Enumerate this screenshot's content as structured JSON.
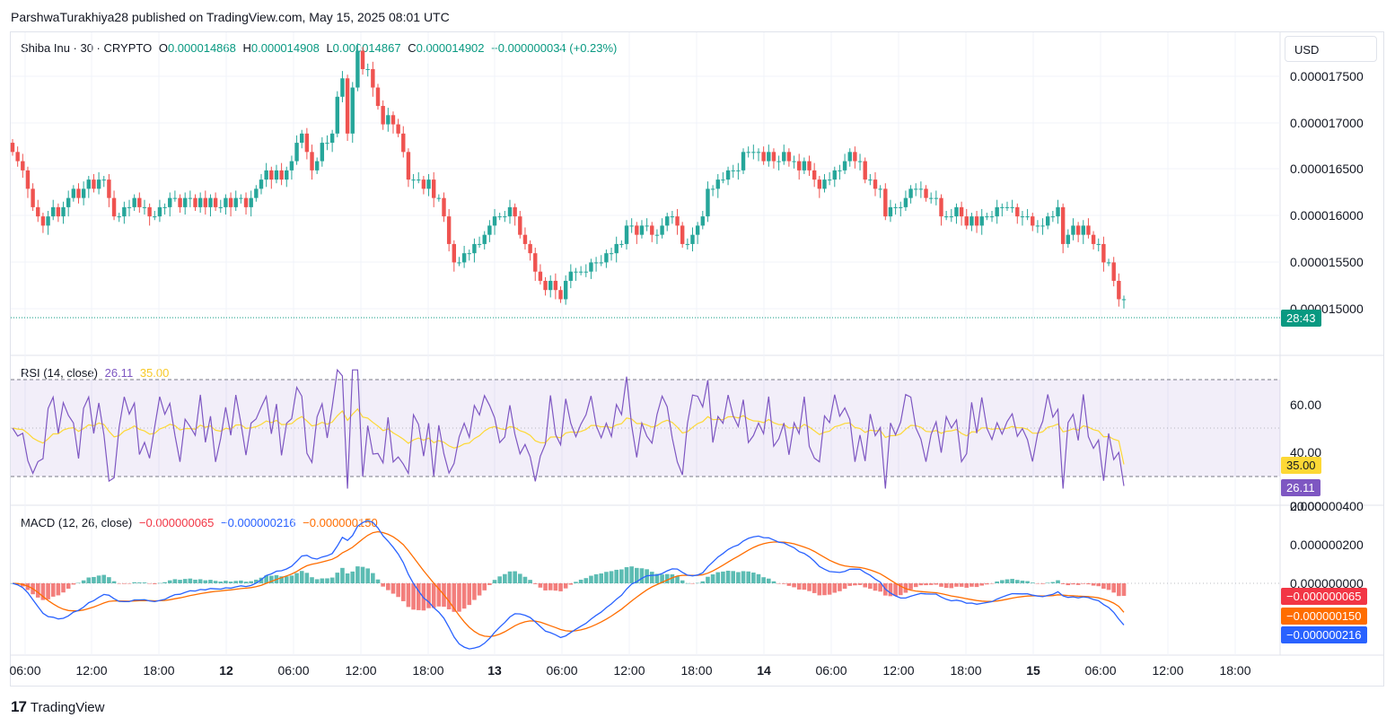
{
  "attribution": "ParshwaTurakhiya28 published on TradingView.com, May 15, 2025 08:01 UTC",
  "currency_button": "USD",
  "legend": {
    "symbol": "Shiba Inu · 30 · CRYPTO",
    "o_label": "O",
    "o_value": "0.000014868",
    "h_label": "H",
    "h_value": "0.000014908",
    "l_label": "L",
    "l_value": "0.000014867",
    "c_label": "C",
    "c_value": "0.000014902",
    "change": "+0.000000034 (+0.23%)"
  },
  "rsi_legend": {
    "name": "RSI (14, close)",
    "value": "26.11",
    "ma": "35.00"
  },
  "macd_legend": {
    "name": "MACD (12, 26, close)",
    "hist": "−0.000000065",
    "macd": "−0.000000216",
    "signal": "−0.000000150"
  },
  "price_axis_labels": [
    "0.000017500",
    "0.000017000",
    "0.000016500",
    "0.000016000",
    "0.000015500",
    "0.000015000"
  ],
  "rsi_axis_labels": [
    "60.00",
    "40.00",
    "20.00"
  ],
  "macd_axis_labels": [
    "0.000000400",
    "0.000000200",
    "0.000000000"
  ],
  "time_labels": [
    "06:00",
    "12:00",
    "18:00",
    "12",
    "06:00",
    "12:00",
    "18:00",
    "13",
    "06:00",
    "12:00",
    "18:00",
    "14",
    "06:00",
    "12:00",
    "18:00",
    "15",
    "06:00",
    "12:00",
    "18:00"
  ],
  "countdown": "28:43",
  "rsi_tags": {
    "ma": "35.00",
    "rsi": "26.11"
  },
  "macd_tags": {
    "hist": "−0.000000065",
    "signal": "−0.000000150",
    "macd": "−0.000000216"
  },
  "footer_brand": "TradingView",
  "colors": {
    "up": "#26a69a",
    "down": "#ef5350",
    "rsi": "#7e57c2",
    "rsi_ma": "#fdd835",
    "macd": "#2962ff",
    "signal": "#ff6d00",
    "hist_up": "#26a69a",
    "hist_down": "#ef5350"
  },
  "chart_data": {
    "type": "candlestick",
    "price_ylim": [
      1.43e-05,
      1.78e-05
    ],
    "candles_close": [
      1.65e-05,
      1.64e-05,
      1.63e-05,
      1.61e-05,
      1.59e-05,
      1.58e-05,
      1.57e-05,
      1.58e-05,
      1.59e-05,
      1.58e-05,
      1.59e-05,
      1.6e-05,
      1.61e-05,
      1.6e-05,
      1.61e-05,
      1.62e-05,
      1.61e-05,
      1.62e-05,
      1.62e-05,
      1.6e-05,
      1.58e-05,
      1.58e-05,
      1.59e-05,
      1.59e-05,
      1.6e-05,
      1.59e-05,
      1.59e-05,
      1.58e-05,
      1.58e-05,
      1.59e-05,
      1.59e-05,
      1.6e-05,
      1.6e-05,
      1.59e-05,
      1.6e-05,
      1.6e-05,
      1.59e-05,
      1.6e-05,
      1.59e-05,
      1.6e-05,
      1.59e-05,
      1.59e-05,
      1.6e-05,
      1.59e-05,
      1.6e-05,
      1.6e-05,
      1.59e-05,
      1.6e-05,
      1.61e-05,
      1.62e-05,
      1.63e-05,
      1.62e-05,
      1.63e-05,
      1.62e-05,
      1.63e-05,
      1.64e-05,
      1.66e-05,
      1.67e-05,
      1.65e-05,
      1.63e-05,
      1.64e-05,
      1.66e-05,
      1.66e-05,
      1.67e-05,
      1.71e-05,
      1.73e-05,
      1.67e-05,
      1.72e-05,
      1.76e-05,
      1.74e-05,
      1.74e-05,
      1.72e-05,
      1.7e-05,
      1.68e-05,
      1.69e-05,
      1.68e-05,
      1.67e-05,
      1.65e-05,
      1.62e-05,
      1.62e-05,
      1.62e-05,
      1.61e-05,
      1.62e-05,
      1.6e-05,
      1.6e-05,
      1.58e-05,
      1.55e-05,
      1.53e-05,
      1.53e-05,
      1.54e-05,
      1.54e-05,
      1.55e-05,
      1.55e-05,
      1.56e-05,
      1.57e-05,
      1.58e-05,
      1.58e-05,
      1.58e-05,
      1.59e-05,
      1.58e-05,
      1.56e-05,
      1.55e-05,
      1.54e-05,
      1.52e-05,
      1.51e-05,
      1.5e-05,
      1.51e-05,
      1.5e-05,
      1.49e-05,
      1.51e-05,
      1.52e-05,
      1.52e-05,
      1.52e-05,
      1.52e-05,
      1.53e-05,
      1.53e-05,
      1.53e-05,
      1.54e-05,
      1.54e-05,
      1.55e-05,
      1.55e-05,
      1.57e-05,
      1.57e-05,
      1.56e-05,
      1.57e-05,
      1.57e-05,
      1.56e-05,
      1.56e-05,
      1.57e-05,
      1.58e-05,
      1.58e-05,
      1.57e-05,
      1.55e-05,
      1.55e-05,
      1.56e-05,
      1.57e-05,
      1.58e-05,
      1.61e-05,
      1.61e-05,
      1.62e-05,
      1.62e-05,
      1.63e-05,
      1.63e-05,
      1.63e-05,
      1.65e-05,
      1.65e-05,
      1.65e-05,
      1.65e-05,
      1.64e-05,
      1.65e-05,
      1.64e-05,
      1.64e-05,
      1.65e-05,
      1.64e-05,
      1.64e-05,
      1.63e-05,
      1.64e-05,
      1.63e-05,
      1.62e-05,
      1.61e-05,
      1.62e-05,
      1.62e-05,
      1.63e-05,
      1.63e-05,
      1.64e-05,
      1.65e-05,
      1.64e-05,
      1.64e-05,
      1.62e-05,
      1.62e-05,
      1.61e-05,
      1.61e-05,
      1.58e-05,
      1.59e-05,
      1.59e-05,
      1.59e-05,
      1.6e-05,
      1.61e-05,
      1.61e-05,
      1.61e-05,
      1.6e-05,
      1.6e-05,
      1.6e-05,
      1.58e-05,
      1.58e-05,
      1.58e-05,
      1.59e-05,
      1.58e-05,
      1.57e-05,
      1.58e-05,
      1.57e-05,
      1.58e-05,
      1.58e-05,
      1.58e-05,
      1.59e-05,
      1.59e-05,
      1.59e-05,
      1.59e-05,
      1.58e-05,
      1.58e-05,
      1.58e-05,
      1.57e-05,
      1.57e-05,
      1.57e-05,
      1.58e-05,
      1.58e-05,
      1.59e-05,
      1.55e-05,
      1.56e-05,
      1.57e-05,
      1.56e-05,
      1.57e-05,
      1.56e-05,
      1.55e-05,
      1.55e-05,
      1.53e-05,
      1.53e-05,
      1.51e-05,
      1.49e-05,
      1.49e-05
    ],
    "rsi": {
      "value": 26.11,
      "ma": 35.0,
      "ylim": [
        15,
        75
      ],
      "bands": [
        70,
        30
      ]
    },
    "macd": {
      "hist": -6.5e-08,
      "macd": -2.16e-07,
      "signal": -1.5e-07,
      "ylim": [
        -4.8e-07,
        4e-07
      ]
    }
  }
}
